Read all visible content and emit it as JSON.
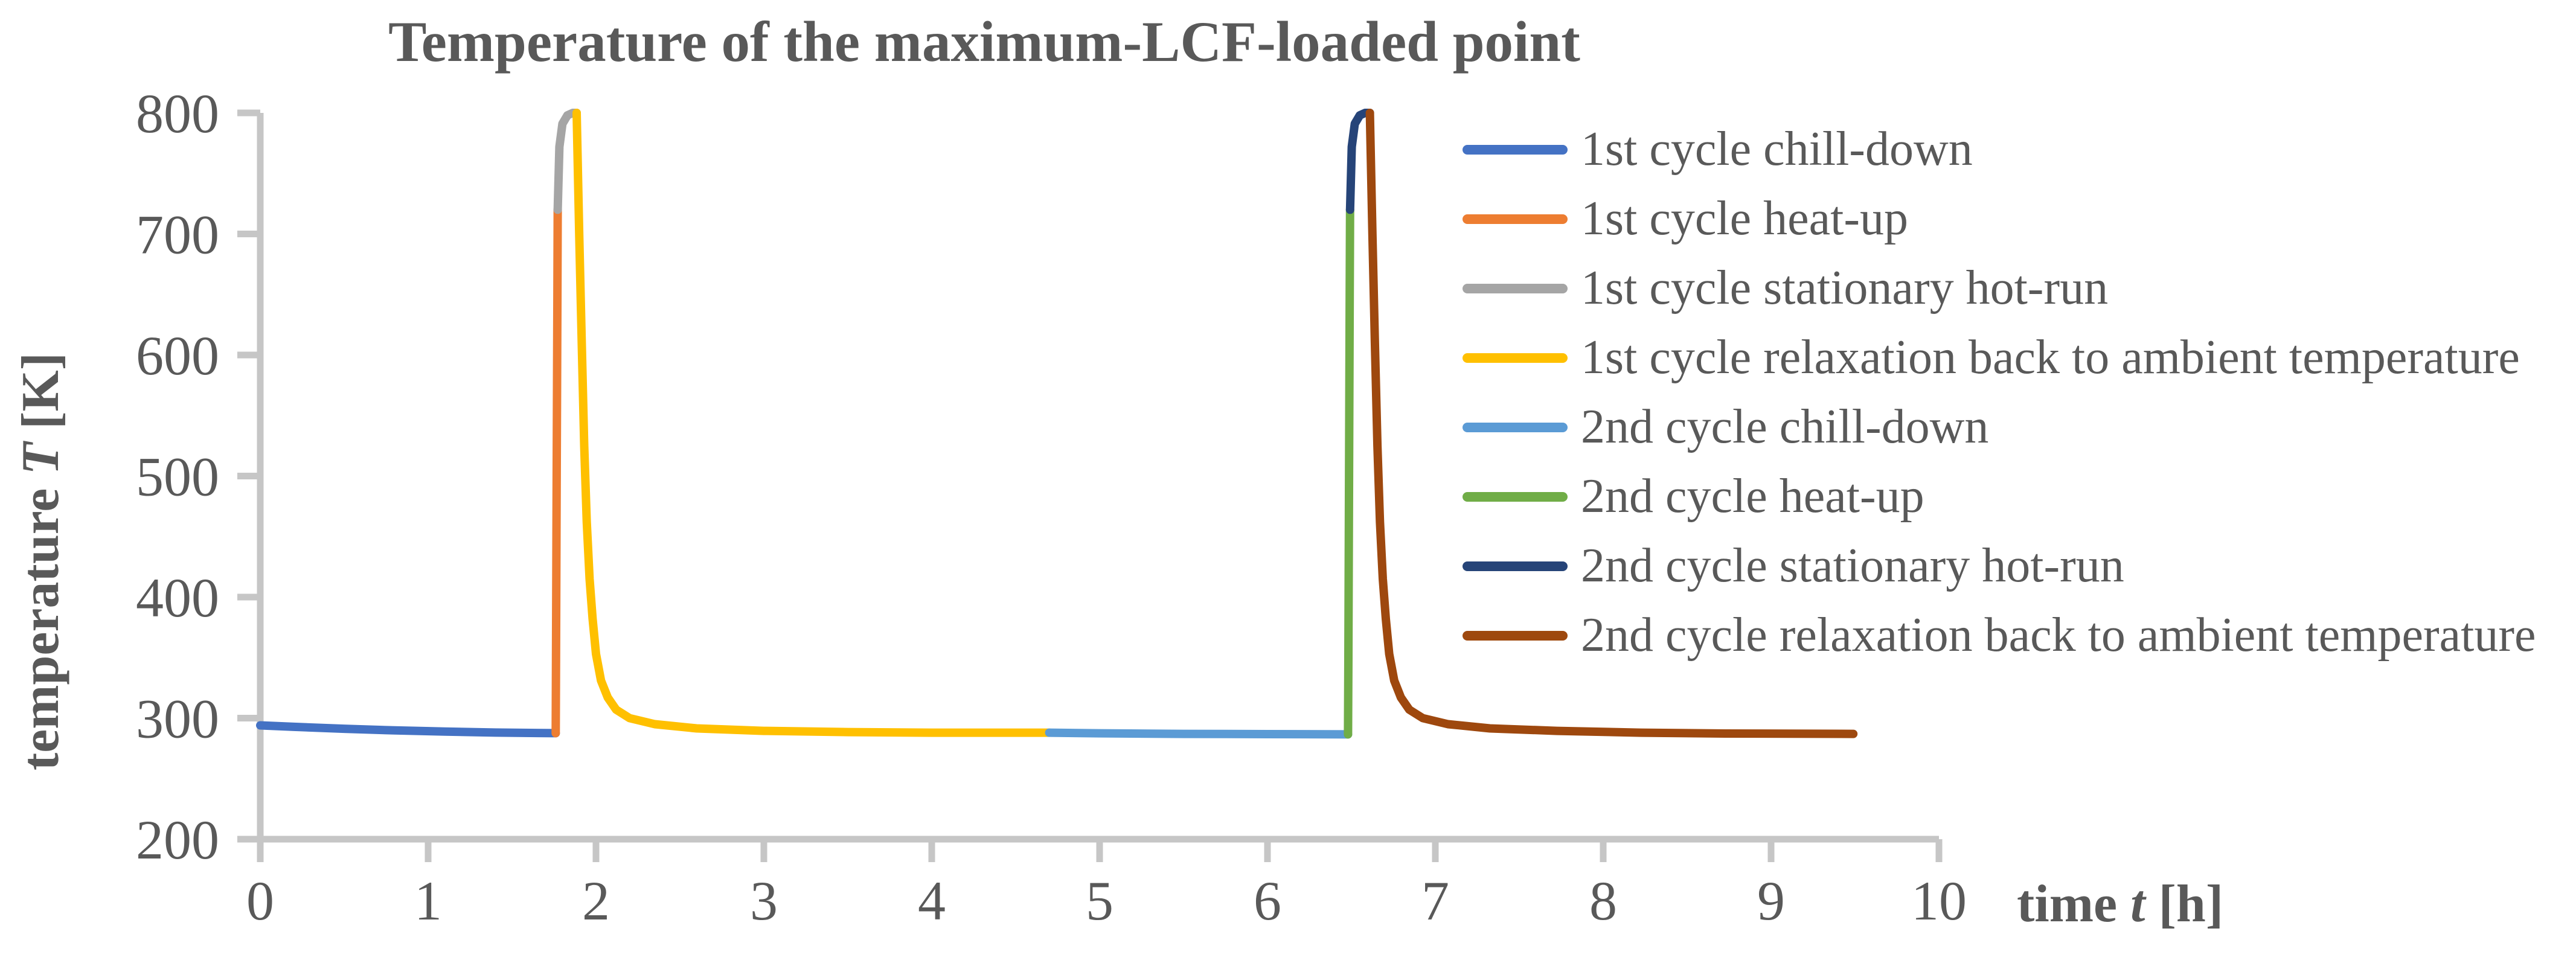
{
  "chart_data": {
    "type": "line",
    "title": "Temperature of the maximum-LCF-loaded point",
    "xlabel": {
      "prefix": "time",
      "symbol": "t",
      "unit": "[h]"
    },
    "ylabel": {
      "prefix": "temperature",
      "symbol": "T",
      "unit": "[K]"
    },
    "xlim": [
      0,
      10
    ],
    "ylim": [
      200,
      800
    ],
    "xticks": [
      0,
      1,
      2,
      3,
      4,
      5,
      6,
      7,
      8,
      9,
      10
    ],
    "yticks": [
      200,
      300,
      400,
      500,
      600,
      700,
      800
    ],
    "grid": false,
    "legend_position": "right",
    "axis_color": "#c6c6c6",
    "text_color": "#595959",
    "line_width": 14,
    "series": [
      {
        "name": "1st cycle chill-down",
        "color": "#4472C4",
        "points": [
          [
            0,
            294
          ],
          [
            0.2,
            292.8
          ],
          [
            0.5,
            291.2
          ],
          [
            0.8,
            289.9
          ],
          [
            1.1,
            288.9
          ],
          [
            1.4,
            288.1
          ],
          [
            1.76,
            287.6
          ]
        ]
      },
      {
        "name": "1st cycle heat-up",
        "color": "#ED7D31",
        "points": [
          [
            1.76,
            287.6
          ],
          [
            1.762,
            350
          ],
          [
            1.766,
            500
          ],
          [
            1.77,
            650
          ],
          [
            1.772,
            720
          ]
        ]
      },
      {
        "name": "1st cycle stationary hot-run",
        "color": "#A5A5A5",
        "points": [
          [
            1.772,
            720
          ],
          [
            1.782,
            772
          ],
          [
            1.8,
            791
          ],
          [
            1.83,
            798
          ],
          [
            1.862,
            800
          ],
          [
            1.885,
            800
          ]
        ]
      },
      {
        "name": "1st cycle relaxation back to ambient temperature",
        "color": "#FFC000",
        "points": [
          [
            1.885,
            800
          ],
          [
            1.9,
            700
          ],
          [
            1.915,
            610
          ],
          [
            1.93,
            525
          ],
          [
            1.945,
            462
          ],
          [
            1.962,
            415
          ],
          [
            1.98,
            382
          ],
          [
            2.0,
            353
          ],
          [
            2.03,
            331
          ],
          [
            2.07,
            317
          ],
          [
            2.12,
            307
          ],
          [
            2.2,
            300
          ],
          [
            2.35,
            295
          ],
          [
            2.6,
            291.5
          ],
          [
            3.0,
            289.5
          ],
          [
            3.5,
            288.5
          ],
          [
            4.0,
            288
          ],
          [
            4.7,
            288
          ]
        ]
      },
      {
        "name": "2nd cycle chill-down",
        "color": "#5B9BD5",
        "points": [
          [
            4.7,
            288
          ],
          [
            5.0,
            287.5
          ],
          [
            5.5,
            287
          ],
          [
            6.0,
            286.8
          ],
          [
            6.48,
            286.6
          ]
        ]
      },
      {
        "name": "2nd cycle heat-up",
        "color": "#70AD47",
        "points": [
          [
            6.48,
            286.6
          ],
          [
            6.482,
            350
          ],
          [
            6.486,
            500
          ],
          [
            6.49,
            650
          ],
          [
            6.492,
            720
          ]
        ]
      },
      {
        "name": "2nd cycle stationary hot-run",
        "color": "#264478",
        "points": [
          [
            6.492,
            720
          ],
          [
            6.502,
            772
          ],
          [
            6.52,
            791
          ],
          [
            6.55,
            798
          ],
          [
            6.582,
            800
          ],
          [
            6.61,
            800
          ]
        ]
      },
      {
        "name": "2nd cycle relaxation back to ambient temperature",
        "color": "#9E480E",
        "points": [
          [
            6.61,
            800
          ],
          [
            6.625,
            700
          ],
          [
            6.64,
            610
          ],
          [
            6.655,
            525
          ],
          [
            6.67,
            462
          ],
          [
            6.687,
            415
          ],
          [
            6.705,
            382
          ],
          [
            6.725,
            353
          ],
          [
            6.755,
            331
          ],
          [
            6.795,
            317
          ],
          [
            6.845,
            307
          ],
          [
            6.925,
            300
          ],
          [
            7.075,
            295
          ],
          [
            7.325,
            291.5
          ],
          [
            7.725,
            289.5
          ],
          [
            8.225,
            288
          ],
          [
            8.725,
            287.3
          ],
          [
            9.49,
            287
          ]
        ]
      }
    ]
  }
}
